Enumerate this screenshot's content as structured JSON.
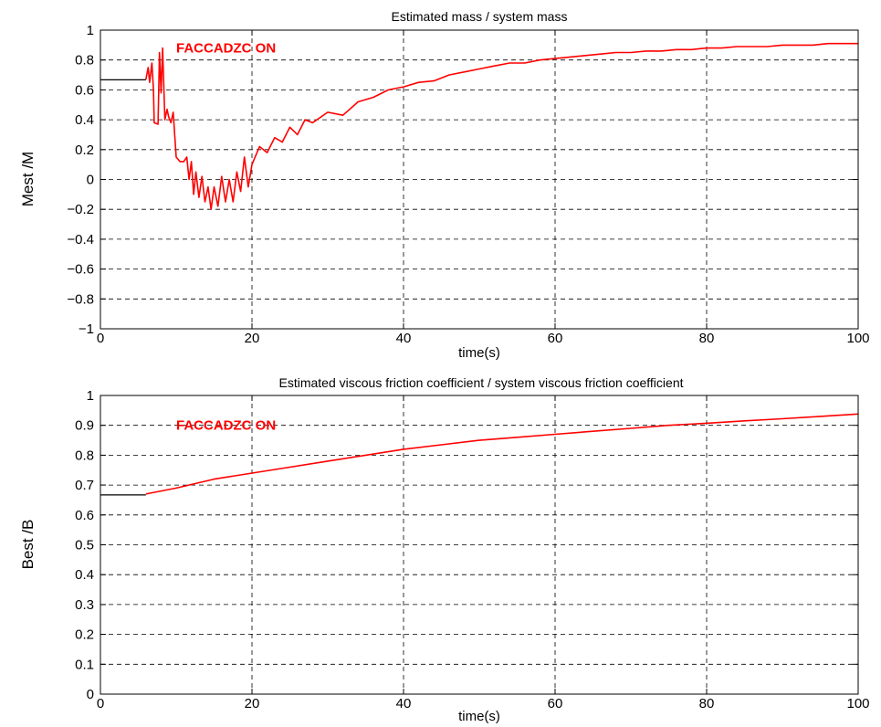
{
  "chart_data": [
    {
      "type": "line",
      "title": "Estimated mass / system mass",
      "xlabel": "time(s)",
      "ylabel": "Mest  /M",
      "xlim": [
        0,
        100
      ],
      "ylim": [
        -1,
        1
      ],
      "xticks": [
        0,
        20,
        40,
        60,
        80,
        100
      ],
      "yticks": [
        -1,
        -0.8,
        -0.6,
        -0.4,
        -0.2,
        0,
        0.2,
        0.4,
        0.6,
        0.8,
        1
      ],
      "ytick_labels": [
        "−1",
        "−0.8",
        "−0.6",
        "−0.4",
        "−0.2",
        "0",
        "0.2",
        "0.4",
        "0.6",
        "0.8",
        "1"
      ],
      "grid": true,
      "annotation": {
        "text": "FACCADZC ON",
        "x": 10,
        "y": 0.88
      },
      "series": [
        {
          "color": "#000000",
          "x": [
            0,
            6
          ],
          "y": [
            0.667,
            0.667
          ]
        },
        {
          "color": "#ff0000",
          "x": [
            6,
            6.3,
            6.5,
            6.8,
            7.0,
            7.1,
            7.6,
            7.8,
            8.0,
            8.2,
            8.5,
            8.8,
            9.0,
            9.3,
            9.6,
            10,
            10.5,
            11,
            11.4,
            11.7,
            12,
            12.3,
            12.6,
            13,
            13.4,
            13.8,
            14.2,
            14.6,
            15,
            15.5,
            16,
            16.5,
            17,
            17.5,
            18,
            18.5,
            19,
            19.5,
            20,
            21,
            22,
            23,
            24,
            25,
            26,
            27,
            28,
            30,
            32,
            34,
            36,
            38,
            40,
            42,
            44,
            46,
            48,
            50,
            52,
            54,
            56,
            58,
            60,
            62,
            64,
            66,
            68,
            70,
            72,
            74,
            76,
            78,
            80,
            82,
            84,
            86,
            88,
            90,
            92,
            94,
            96,
            98,
            100
          ],
          "y": [
            0.67,
            0.75,
            0.65,
            0.78,
            0.6,
            0.38,
            0.37,
            0.85,
            0.58,
            0.88,
            0.4,
            0.47,
            0.42,
            0.38,
            0.45,
            0.15,
            0.12,
            0.12,
            0.15,
            0.0,
            0.12,
            -0.1,
            0.05,
            -0.12,
            0.02,
            -0.15,
            -0.05,
            -0.2,
            -0.05,
            -0.18,
            0.02,
            -0.15,
            0.0,
            -0.15,
            0.05,
            -0.08,
            0.15,
            -0.05,
            0.1,
            0.22,
            0.18,
            0.28,
            0.25,
            0.35,
            0.3,
            0.4,
            0.38,
            0.45,
            0.43,
            0.52,
            0.55,
            0.6,
            0.62,
            0.65,
            0.66,
            0.7,
            0.72,
            0.74,
            0.76,
            0.78,
            0.78,
            0.8,
            0.81,
            0.82,
            0.83,
            0.84,
            0.85,
            0.85,
            0.86,
            0.86,
            0.87,
            0.87,
            0.88,
            0.88,
            0.89,
            0.89,
            0.89,
            0.9,
            0.9,
            0.9,
            0.91,
            0.91,
            0.91
          ]
        }
      ]
    },
    {
      "type": "line",
      "title": "Estimated viscous friction coefficient / system viscous friction coefficient",
      "xlabel": "time(s)",
      "ylabel": "Best  /B",
      "xlim": [
        0,
        100
      ],
      "ylim": [
        0,
        1
      ],
      "xticks": [
        0,
        20,
        40,
        60,
        80,
        100
      ],
      "yticks": [
        0,
        0.1,
        0.2,
        0.3,
        0.4,
        0.5,
        0.6,
        0.7,
        0.8,
        0.9,
        1
      ],
      "ytick_labels": [
        "0",
        "0.1",
        "0.2",
        "0.3",
        "0.4",
        "0.5",
        "0.6",
        "0.7",
        "0.8",
        "0.9",
        "1"
      ],
      "grid": true,
      "annotation": {
        "text": "FACCADZC ON",
        "x": 10,
        "y": 0.9
      },
      "series": [
        {
          "color": "#000000",
          "x": [
            0,
            6
          ],
          "y": [
            0.667,
            0.667
          ]
        },
        {
          "color": "#ff0000",
          "x": [
            6,
            10,
            15,
            20,
            25,
            30,
            35,
            40,
            45,
            50,
            55,
            60,
            65,
            70,
            75,
            80,
            85,
            90,
            95,
            100
          ],
          "y": [
            0.67,
            0.69,
            0.72,
            0.74,
            0.76,
            0.78,
            0.8,
            0.82,
            0.835,
            0.85,
            0.86,
            0.87,
            0.88,
            0.89,
            0.9,
            0.907,
            0.915,
            0.922,
            0.93,
            0.938
          ]
        }
      ]
    }
  ]
}
